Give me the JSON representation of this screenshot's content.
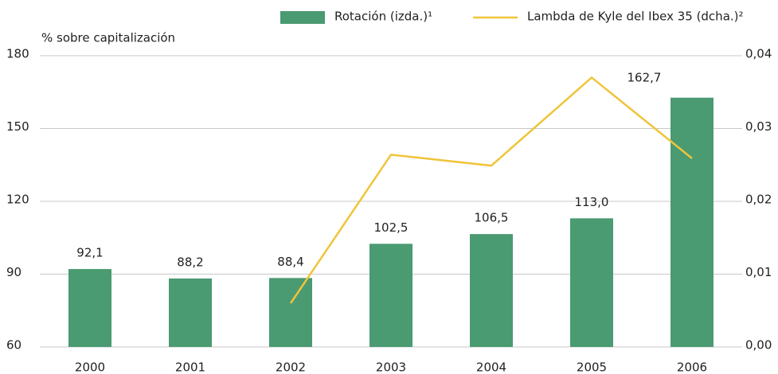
{
  "chart_data": {
    "type": "bar",
    "y_axis_label": "% sobre capitalización",
    "categories": [
      "2000",
      "2001",
      "2002",
      "2003",
      "2004",
      "2005",
      "2006"
    ],
    "series": [
      {
        "name": "Rotación (izda.)¹",
        "type": "bar",
        "color": "#4a9a72",
        "values": [
          92.1,
          88.2,
          88.4,
          102.5,
          106.5,
          113.0,
          162.7
        ],
        "value_labels": [
          "92,1",
          "88,2",
          "88,4",
          "102,5",
          "106,5",
          "113,0",
          "162,7"
        ]
      },
      {
        "name": "Lambda de Kyle del Ibex 35 (dcha.)²",
        "type": "line",
        "axis": "y2",
        "color": "#f0c43a",
        "values": [
          null,
          null,
          0.006,
          0.0264,
          0.0249,
          0.037,
          0.0259
        ]
      }
    ],
    "ylim": [
      60,
      180
    ],
    "yticks": [
      60,
      90,
      120,
      150,
      180
    ],
    "y2lim": [
      0,
      0.04
    ],
    "y2ticks": [
      {
        "value": 0,
        "label": "0,00"
      },
      {
        "value": 0.01,
        "label": "0,01"
      },
      {
        "value": 0.02,
        "label": "0,02"
      },
      {
        "value": 0.03,
        "label": "0,03"
      },
      {
        "value": 0.04,
        "label": "0,04"
      }
    ],
    "grid": true,
    "legend": "top"
  }
}
